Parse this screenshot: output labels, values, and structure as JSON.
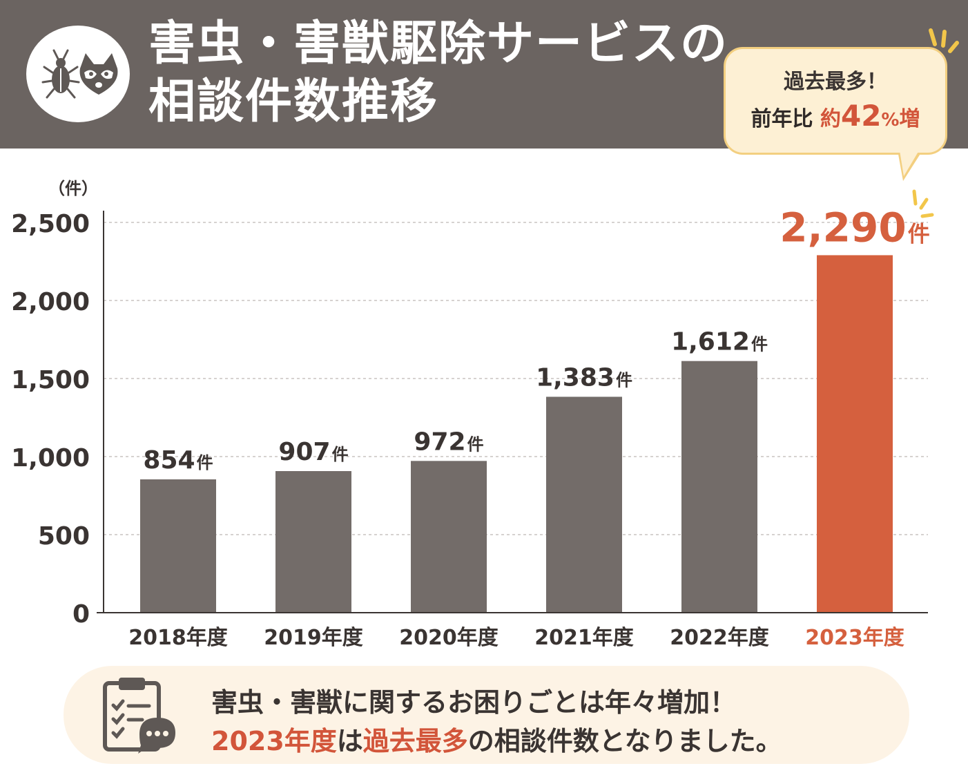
{
  "header": {
    "title_line1": "害虫・害獣駆除サービスの",
    "title_line2": "相談件数推移",
    "icons": [
      "bug-icon",
      "raccoon-icon"
    ]
  },
  "badge": {
    "line1": "過去最多！",
    "prefix": "前年比",
    "approx": "約",
    "number": "42",
    "percent": "%",
    "suffix": "増"
  },
  "chart_data": {
    "type": "bar",
    "categories": [
      "2018年度",
      "2019年度",
      "2020年度",
      "2021年度",
      "2022年度",
      "2023年度"
    ],
    "values": [
      854,
      907,
      972,
      1383,
      1612,
      2290
    ],
    "data_labels": [
      "854",
      "907",
      "972",
      "1,383",
      "1,612",
      "2,290"
    ],
    "label_unit": "件",
    "ylabel": "（件）",
    "ylim": [
      0,
      2500
    ],
    "yticks": [
      0,
      500,
      1000,
      1500,
      2000,
      2500
    ],
    "ytick_labels": [
      "0",
      "500",
      "1,000",
      "1,500",
      "2,000",
      "2,500"
    ],
    "grid": true,
    "highlight_index": 5,
    "colors": {
      "bar": "#736c69",
      "highlight": "#d5603e",
      "text": "#3a3432",
      "grid": "#c9c4c1"
    }
  },
  "footer": {
    "line1": "害虫・害獣に関するお困りごとは年々増加！",
    "line2_a": "2023年度",
    "line2_b": "は",
    "line2_c": "過去最多",
    "line2_d": "の相談件数となりました。",
    "icon": "clipboard-chat-icon"
  }
}
